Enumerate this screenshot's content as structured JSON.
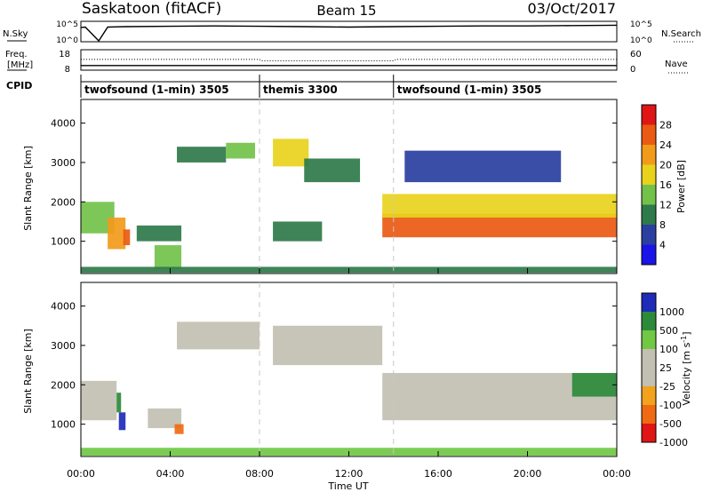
{
  "header": {
    "title_left": "Saskatoon (fitACF)",
    "title_center": "Beam 15",
    "title_right": "03/Oct/2017"
  },
  "noise_panel": {
    "left_label": "N.Sky",
    "right_label": "N.Search",
    "ticks_left": [
      "10^5",
      "10^0"
    ],
    "ticks_right": [
      "10^5",
      "10^0"
    ],
    "range": [
      0,
      5
    ]
  },
  "freq_panel": {
    "left_label_top": "Freq.",
    "left_label_bottom": "[MHz]",
    "right_label": "Nave",
    "ticks_left": [
      "18",
      "8"
    ],
    "ticks_right": [
      "60",
      "0"
    ],
    "freq_range": [
      8,
      18
    ],
    "nave_range": [
      0,
      60
    ]
  },
  "cpid": {
    "label": "CPID",
    "segments": [
      {
        "start": 0,
        "end": 8,
        "name": "twofsound (1-min) 3505"
      },
      {
        "start": 8,
        "end": 14,
        "name": "themis 3300"
      },
      {
        "start": 14,
        "end": 24,
        "name": "twofsound (1-min) 3505"
      }
    ]
  },
  "power_panel": {
    "ylabel": "Slant Range [km]",
    "yticks": [
      "1000",
      "2000",
      "3000",
      "4000"
    ],
    "colorbar_label": "Power [dB]",
    "colorbar_ticks": [
      "4",
      "8",
      "12",
      "16",
      "20",
      "24",
      "28"
    ],
    "colors": [
      "#1a14e8",
      "#2a3fa0",
      "#2f7a4a",
      "#72c24a",
      "#e8d21c",
      "#f29a1a",
      "#ea5a12",
      "#e01515"
    ]
  },
  "velocity_panel": {
    "ylabel": "Slant Range [km]",
    "yticks": [
      "1000",
      "2000",
      "3000",
      "4000"
    ],
    "colorbar_label_main": "Velocity  [m s",
    "colorbar_label_sup": "-1",
    "colorbar_label_end": "]",
    "colorbar_ticks": [
      "1000",
      "500",
      "100",
      "25",
      "-25",
      "-100",
      "-500",
      "-1000"
    ],
    "colors": [
      "#1d2bb8",
      "#2c8a3a",
      "#70c844",
      "#c2c0b2",
      "#c2c0b2",
      "#f2a21c",
      "#ef6a12",
      "#e01515"
    ]
  },
  "time_axis": {
    "label": "Time UT",
    "ticks": [
      "00:00",
      "04:00",
      "08:00",
      "12:00",
      "16:00",
      "20:00",
      "00:00"
    ]
  },
  "chart_data": [
    {
      "type": "line",
      "title": "N.Sky / N.Search",
      "x": [
        0,
        0.2,
        0.8,
        1.2,
        2,
        4,
        6,
        8,
        10,
        12,
        14,
        16,
        18,
        20,
        22,
        24
      ],
      "series": [
        {
          "name": "N.Sky",
          "values": [
            3.6,
            3.7,
            0.0,
            3.7,
            3.8,
            3.9,
            4.0,
            3.9,
            3.8,
            3.7,
            3.8,
            3.9,
            4.0,
            4.0,
            4.1,
            4.2
          ]
        }
      ],
      "ylim": [
        0,
        5
      ]
    },
    {
      "type": "line",
      "title": "Freq. / Nave",
      "x": [
        0,
        8,
        8.1,
        14,
        14.1,
        24
      ],
      "series": [
        {
          "name": "Freq.",
          "values": [
            10.0,
            10.0,
            10.0,
            10.0,
            10.0,
            10.0
          ]
        },
        {
          "name": "Nave",
          "values": [
            32,
            32,
            27,
            27,
            32,
            32
          ]
        }
      ]
    },
    {
      "type": "heatmap",
      "title": "Power [dB]",
      "xlabel": "Time UT",
      "ylabel": "Slant Range [km]",
      "xlim": [
        0,
        24
      ],
      "ylim": [
        180,
        4600
      ],
      "cells": [
        {
          "t0": 0.0,
          "t1": 1.5,
          "r0": 1200,
          "r1": 2000,
          "value": 14
        },
        {
          "t0": 1.2,
          "t1": 2.0,
          "r0": 800,
          "r1": 1600,
          "value": 22
        },
        {
          "t0": 1.9,
          "t1": 2.2,
          "r0": 900,
          "r1": 1300,
          "value": 27
        },
        {
          "t0": 2.5,
          "t1": 4.5,
          "r0": 1000,
          "r1": 1400,
          "value": 8
        },
        {
          "t0": 3.3,
          "t1": 4.5,
          "r0": 300,
          "r1": 900,
          "value": 12
        },
        {
          "t0": 4.3,
          "t1": 6.5,
          "r0": 3000,
          "r1": 3400,
          "value": 8
        },
        {
          "t0": 6.5,
          "t1": 7.8,
          "r0": 3100,
          "r1": 3500,
          "value": 12
        },
        {
          "t0": 8.6,
          "t1": 10.8,
          "r0": 1000,
          "r1": 1500,
          "value": 8
        },
        {
          "t0": 8.6,
          "t1": 10.2,
          "r0": 2900,
          "r1": 3600,
          "value": 16
        },
        {
          "t0": 10.0,
          "t1": 12.5,
          "r0": 2500,
          "r1": 3100,
          "value": 8
        },
        {
          "t0": 13.5,
          "t1": 24.0,
          "r0": 1100,
          "r1": 1700,
          "value": 26
        },
        {
          "t0": 13.5,
          "t1": 24.0,
          "r0": 1600,
          "r1": 2200,
          "value": 17
        },
        {
          "t0": 14.5,
          "t1": 21.5,
          "r0": 2500,
          "r1": 3300,
          "value": 6
        },
        {
          "t0": 0.0,
          "t1": 24.0,
          "r0": 200,
          "r1": 350,
          "value": 10
        }
      ]
    },
    {
      "type": "heatmap",
      "title": "Velocity [m s-1]",
      "xlabel": "Time UT",
      "ylabel": "Slant Range [km]",
      "xlim": [
        0,
        24
      ],
      "ylim": [
        180,
        4600
      ],
      "cells": [
        {
          "t0": 0.0,
          "t1": 1.6,
          "r0": 1100,
          "r1": 2100,
          "value": 0
        },
        {
          "t0": 1.7,
          "t1": 2.0,
          "r0": 850,
          "r1": 1300,
          "value": 1000
        },
        {
          "t0": 1.6,
          "t1": 1.8,
          "r0": 1300,
          "r1": 1800,
          "value": 300
        },
        {
          "t0": 3.0,
          "t1": 4.5,
          "r0": 900,
          "r1": 1400,
          "value": 0
        },
        {
          "t0": 4.2,
          "t1": 4.6,
          "r0": 750,
          "r1": 1000,
          "value": -300
        },
        {
          "t0": 4.3,
          "t1": 8.0,
          "r0": 2900,
          "r1": 3600,
          "value": 0
        },
        {
          "t0": 8.6,
          "t1": 13.5,
          "r0": 2500,
          "r1": 3500,
          "value": 0
        },
        {
          "t0": 13.5,
          "t1": 24.0,
          "r0": 1100,
          "r1": 2300,
          "value": 0
        },
        {
          "t0": 22.0,
          "t1": 24.0,
          "r0": 1700,
          "r1": 2300,
          "value": 300
        },
        {
          "t0": 0.0,
          "t1": 24.0,
          "r0": 200,
          "r1": 400,
          "value": 60
        }
      ]
    }
  ]
}
